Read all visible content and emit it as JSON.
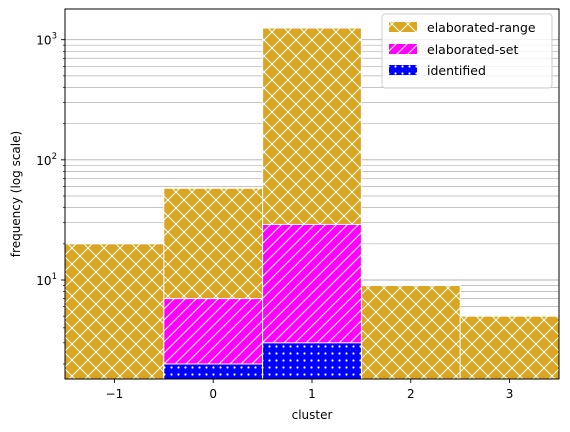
{
  "chart_data": {
    "type": "bar",
    "stacked": true,
    "x": [
      -1,
      0,
      1,
      2,
      3
    ],
    "x_tick_labels": [
      "−1",
      "0",
      "1",
      "2",
      "3"
    ],
    "xlabel": "cluster",
    "ylabel": "frequency (log scale)",
    "yscale": "log",
    "ylim": [
      1.5,
      1800
    ],
    "xlim": [
      -1.5,
      3.5
    ],
    "y_tick_labels": [
      "10¹",
      "10²",
      "10³"
    ],
    "y_ticks": [
      10,
      100,
      1000
    ],
    "grid": "y, major and minor",
    "legend_position": "top-right",
    "series": [
      {
        "name": "elaborated-range",
        "values": [
          20,
          58,
          1250,
          9,
          5
        ],
        "color": "#DAA520",
        "hatch": "diagonal cross"
      },
      {
        "name": "elaborated-set",
        "values": [
          0,
          7,
          29,
          0,
          0
        ],
        "color": "#FF00FF",
        "hatch": "diagonal lines"
      },
      {
        "name": "identified",
        "values": [
          0,
          2,
          3,
          0,
          0
        ],
        "color": "#0000FF",
        "hatch": "dots"
      }
    ]
  }
}
